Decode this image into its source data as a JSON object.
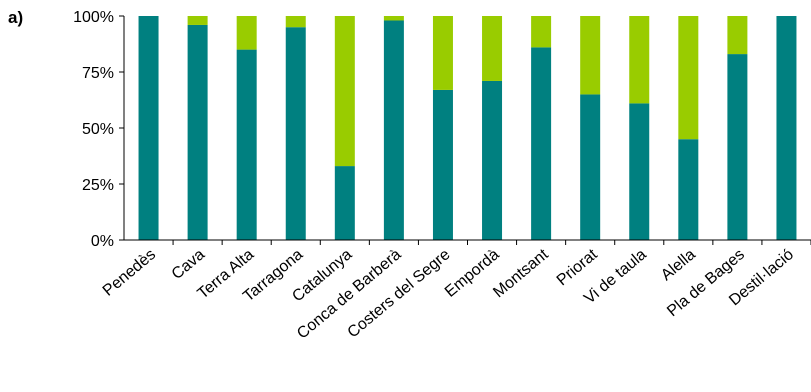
{
  "panel_label": "a)",
  "colors": {
    "series_1": "#008080",
    "series_2": "#99cc00",
    "axis": "#000000"
  },
  "chart_data": {
    "type": "bar",
    "stacked": true,
    "title": "",
    "xlabel": "",
    "ylabel": "",
    "ylim": [
      0,
      100
    ],
    "y_ticks": [
      "0%",
      "25%",
      "50%",
      "75%",
      "100%"
    ],
    "y_tick_values": [
      0,
      25,
      50,
      75,
      100
    ],
    "grid": false,
    "legend": "none",
    "categories": [
      "Penedès",
      "Cava",
      "Terra Alta",
      "Tarragona",
      "Catalunya",
      "Conca de Barberà",
      "Costers del Segre",
      "Empordà",
      "Montsant",
      "Priorat",
      "Vi de taula",
      "Alella",
      "Pla de Bages",
      "Destil·lació"
    ],
    "series": [
      {
        "values": [
          100,
          96,
          85,
          95,
          33,
          98,
          67,
          71,
          86,
          65,
          61,
          45,
          83,
          100
        ]
      },
      {
        "values": [
          0,
          4,
          15,
          5,
          67,
          2,
          33,
          29,
          14,
          35,
          39,
          55,
          17,
          0
        ]
      }
    ]
  }
}
